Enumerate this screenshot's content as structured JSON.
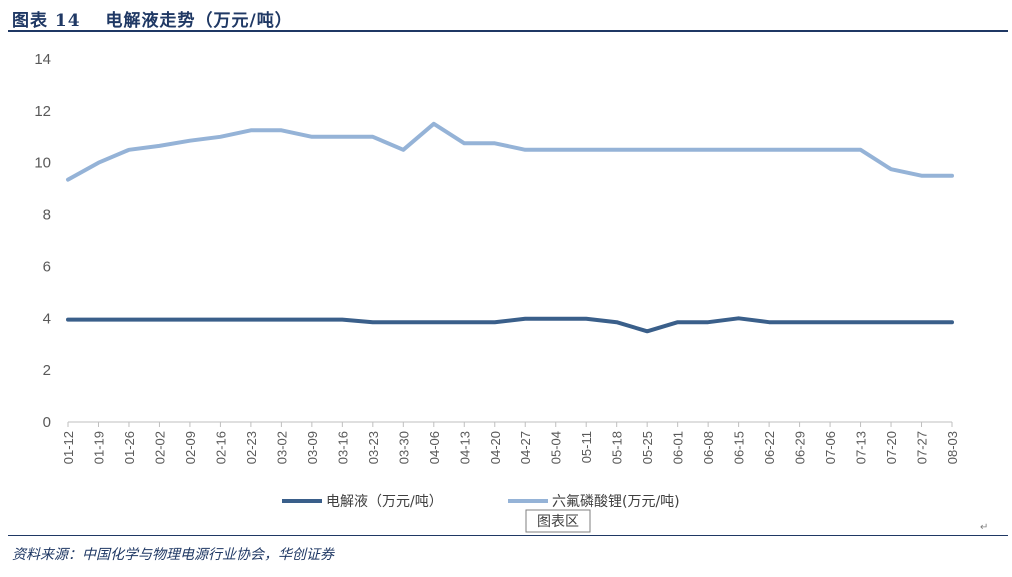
{
  "figure": {
    "title": "图表 14　 电解液走势（万元/吨）",
    "source": "资料来源：中国化学与物理电源行业协会，华创证券",
    "tooltip": "图表区"
  },
  "chart_data": {
    "type": "line",
    "title": "",
    "xlabel": "",
    "ylabel": "",
    "ylim": [
      0,
      14
    ],
    "yticks": [
      0,
      2,
      4,
      6,
      8,
      10,
      12,
      14
    ],
    "grid": false,
    "legend_position": "bottom",
    "categories": [
      "01-12",
      "01-19",
      "01-26",
      "02-02",
      "02-09",
      "02-16",
      "02-23",
      "03-02",
      "03-09",
      "03-16",
      "03-23",
      "03-30",
      "04-06",
      "04-13",
      "04-20",
      "04-27",
      "05-04",
      "05-11",
      "05-18",
      "05-25",
      "06-01",
      "06-08",
      "06-15",
      "06-22",
      "06-29",
      "07-06",
      "07-13",
      "07-20",
      "07-27",
      "08-03"
    ],
    "series": [
      {
        "name": "电解液（万元/吨）",
        "color": "#3a5f8a",
        "values": [
          3.95,
          3.95,
          3.95,
          3.95,
          3.95,
          3.95,
          3.95,
          3.95,
          3.95,
          3.95,
          3.85,
          3.85,
          3.85,
          3.85,
          3.85,
          3.98,
          3.98,
          3.98,
          3.85,
          3.5,
          3.85,
          3.85,
          4.0,
          3.85,
          3.85,
          3.85,
          3.85,
          3.85,
          3.85,
          3.85
        ]
      },
      {
        "name": "六氟磷酸锂(万元/吨)",
        "color": "#95b3d7",
        "values": [
          9.35,
          10.0,
          10.5,
          10.65,
          10.85,
          11.0,
          11.25,
          11.25,
          11.0,
          11.0,
          11.0,
          10.5,
          11.5,
          10.75,
          10.75,
          10.5,
          10.5,
          10.5,
          10.5,
          10.5,
          10.5,
          10.5,
          10.5,
          10.5,
          10.5,
          10.5,
          10.5,
          9.75,
          9.5,
          9.5
        ]
      }
    ]
  }
}
